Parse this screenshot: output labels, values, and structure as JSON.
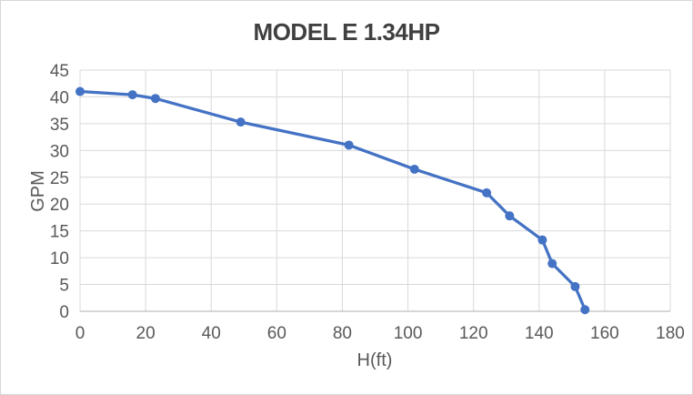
{
  "chart_data": {
    "type": "line",
    "title": "MODEL E 1.34HP",
    "xlabel": "H(ft)",
    "ylabel": "GPM",
    "xlim": [
      0,
      180
    ],
    "ylim": [
      0,
      45
    ],
    "xticks": [
      0,
      20,
      40,
      60,
      80,
      100,
      120,
      140,
      160,
      180
    ],
    "yticks": [
      0,
      5,
      10,
      15,
      20,
      25,
      30,
      35,
      40,
      45
    ],
    "grid": true,
    "legend_position": "none",
    "series": [
      {
        "name": "MODEL E 1.34HP",
        "marker": "circle",
        "color": "#4472C4",
        "x": [
          0,
          16,
          23,
          49,
          82,
          102,
          124,
          131,
          141,
          144,
          151,
          154
        ],
        "y": [
          41,
          40.4,
          39.7,
          35.3,
          31,
          26.5,
          22.1,
          17.8,
          13.3,
          8.9,
          4.6,
          0.3
        ]
      }
    ]
  },
  "colors": {
    "series_line": "#4472C4",
    "gridline": "#D9D9D9",
    "axis_line": "#BFBFBF",
    "tick_label": "#595959",
    "axis_title": "#595959",
    "chart_title": "#404040",
    "background": "#FFFFFF",
    "chart_border": "#D6D6D6"
  }
}
